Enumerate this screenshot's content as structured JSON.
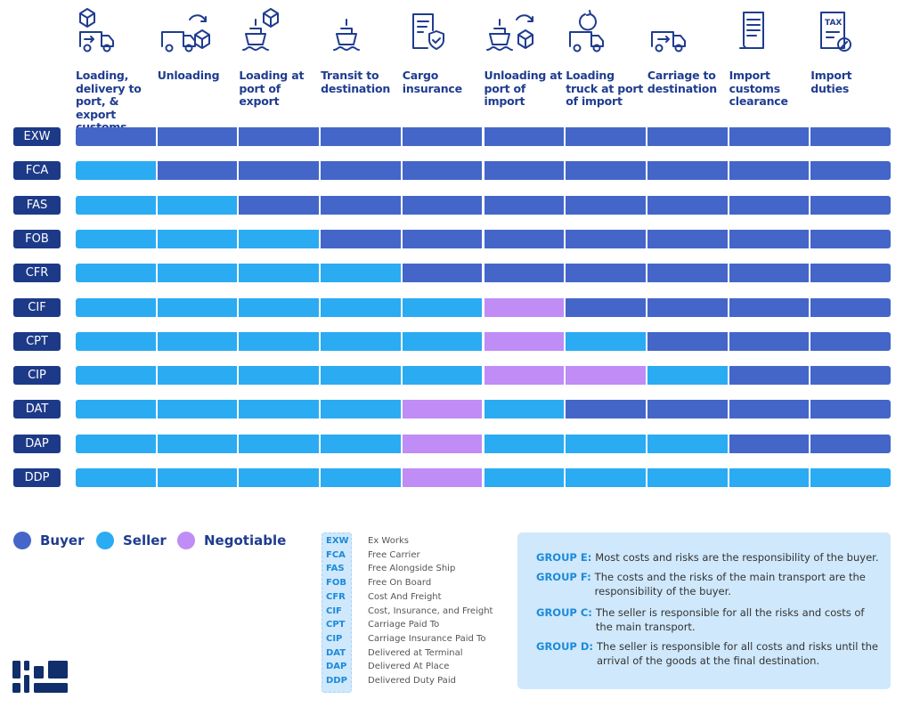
{
  "colors": {
    "buyer": "#4466c8",
    "seller": "#2aabf2",
    "negotiable": "#c08cf5",
    "term_bg": "#1d3a88",
    "text": "#1f3c8f"
  },
  "columns": [
    {
      "label": "Loading, delivery to port, & export customs",
      "icon": "box-truck-icon"
    },
    {
      "label": "Unloading",
      "icon": "truck-unload-icon"
    },
    {
      "label": "Loading at port of export",
      "icon": "ship-box-icon"
    },
    {
      "label": "Transit to destination",
      "icon": "ship-icon"
    },
    {
      "label": "Cargo insurance",
      "icon": "document-shield-icon"
    },
    {
      "label": "Unloading at port of import",
      "icon": "ship-unload-icon"
    },
    {
      "label": "Loading truck at port of import",
      "icon": "truck-reload-icon"
    },
    {
      "label": "Carriage to destination",
      "icon": "truck-arrow-icon"
    },
    {
      "label": "Import customs clearance",
      "icon": "scroll-icon"
    },
    {
      "label": "Import duties",
      "icon": "tax-document-icon"
    }
  ],
  "rows": [
    {
      "term": "EXW",
      "cells": [
        "B",
        "B",
        "B",
        "B",
        "B",
        "B",
        "B",
        "B",
        "B",
        "B"
      ]
    },
    {
      "term": "FCA",
      "cells": [
        "S",
        "B",
        "B",
        "B",
        "B",
        "B",
        "B",
        "B",
        "B",
        "B"
      ]
    },
    {
      "term": "FAS",
      "cells": [
        "S",
        "S",
        "B",
        "B",
        "B",
        "B",
        "B",
        "B",
        "B",
        "B"
      ]
    },
    {
      "term": "FOB",
      "cells": [
        "S",
        "S",
        "S",
        "B",
        "B",
        "B",
        "B",
        "B",
        "B",
        "B"
      ]
    },
    {
      "term": "CFR",
      "cells": [
        "S",
        "S",
        "S",
        "S",
        "B",
        "B",
        "B",
        "B",
        "B",
        "B"
      ]
    },
    {
      "term": "CIF",
      "cells": [
        "S",
        "S",
        "S",
        "S",
        "S",
        "N",
        "B",
        "B",
        "B",
        "B"
      ]
    },
    {
      "term": "CPT",
      "cells": [
        "S",
        "S",
        "S",
        "S",
        "S",
        "N",
        "S",
        "B",
        "B",
        "B"
      ]
    },
    {
      "term": "CIP",
      "cells": [
        "S",
        "S",
        "S",
        "S",
        "S",
        "N",
        "N",
        "S",
        "B",
        "B"
      ]
    },
    {
      "term": "DAT",
      "cells": [
        "S",
        "S",
        "S",
        "S",
        "N",
        "S",
        "B",
        "B",
        "B",
        "B"
      ]
    },
    {
      "term": "DAP",
      "cells": [
        "S",
        "S",
        "S",
        "S",
        "N",
        "S",
        "S",
        "S",
        "B",
        "B"
      ]
    },
    {
      "term": "DDP",
      "cells": [
        "S",
        "S",
        "S",
        "S",
        "N",
        "S",
        "S",
        "S",
        "S",
        "S"
      ]
    }
  ],
  "legend": {
    "buyer": "Buyer",
    "seller": "Seller",
    "negotiable": "Negotiable"
  },
  "abbreviations": [
    {
      "code": "EXW",
      "name": "Ex Works"
    },
    {
      "code": "FCA",
      "name": "Free Carrier"
    },
    {
      "code": "FAS",
      "name": "Free Alongside Ship"
    },
    {
      "code": "FOB",
      "name": "Free On Board"
    },
    {
      "code": "CFR",
      "name": "Cost And Freight"
    },
    {
      "code": "CIF",
      "name": "Cost, Insurance, and Freight"
    },
    {
      "code": "CPT",
      "name": "Carriage Paid To"
    },
    {
      "code": "CIP",
      "name": "Carriage Insurance Paid To"
    },
    {
      "code": "DAT",
      "name": "Delivered at Terminal"
    },
    {
      "code": "DAP",
      "name": "Delivered At Place"
    },
    {
      "code": "DDP",
      "name": "Delivered Duty Paid"
    }
  ],
  "groups": [
    {
      "key": "GROUP E:",
      "text": "Most costs and risks are the responsibility of the buyer."
    },
    {
      "key": "GROUP F:",
      "text": "The costs and the risks of the main transport are the responsibility of the buyer."
    },
    {
      "key": "GROUP C:",
      "text": "The seller is responsible for all the risks and costs of the main transport."
    },
    {
      "key": "GROUP D:",
      "text": "The seller is responsible for all costs and risks until the arrival of the goods at the final destination."
    }
  ]
}
